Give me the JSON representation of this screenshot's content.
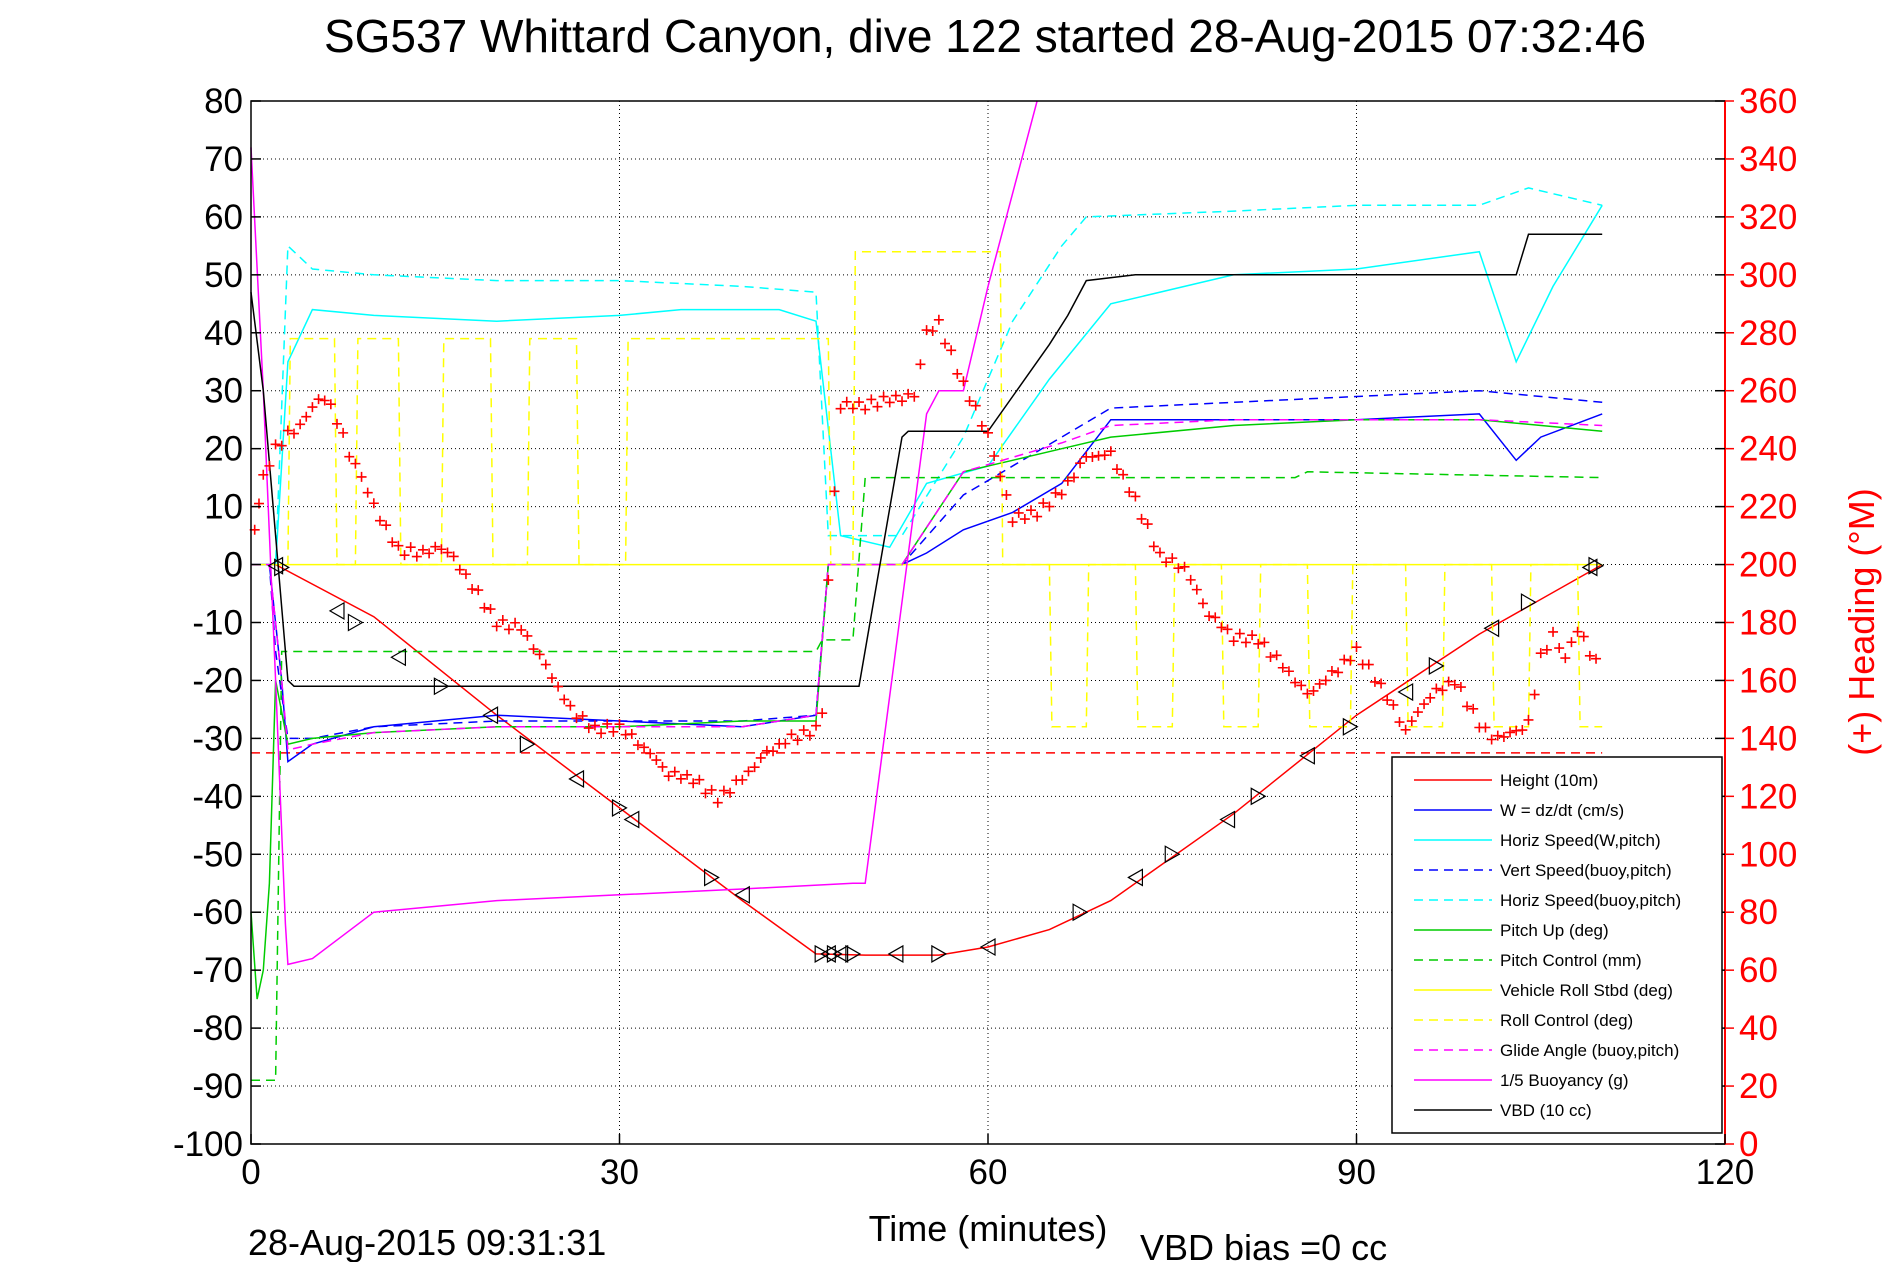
{
  "chart_data": {
    "type": "line",
    "title": "SG537 Whittard Canyon, dive 122 started 28-Aug-2015 07:32:46",
    "xlabel": "Time (minutes)",
    "ylabel_right": "(+) Heading (°M)",
    "xlim": [
      0,
      120
    ],
    "ylim": [
      -100,
      80
    ],
    "ylim_right": [
      0,
      360
    ],
    "xticks": [
      "0",
      "30",
      "60",
      "90",
      "120"
    ],
    "yticks": [
      "80",
      "70",
      "60",
      "50",
      "40",
      "30",
      "20",
      "10",
      "0",
      "-10",
      "-20",
      "-30",
      "-40",
      "-50",
      "-60",
      "-70",
      "-80",
      "-90",
      "-100"
    ],
    "yticks_right": [
      "360",
      "340",
      "320",
      "300",
      "280",
      "260",
      "240",
      "220",
      "200",
      "180",
      "160",
      "140",
      "120",
      "100",
      "80",
      "60",
      "40",
      "20",
      "0"
    ],
    "grid": true,
    "legend_position": "bottom-right",
    "footer_timestamp": "28-Aug-2015 09:31:31",
    "footer_note": "VBD bias =0 cc",
    "series": [
      {
        "name": "Height (10m)",
        "color": "#ff0000",
        "dash": "solid",
        "x": [
          0,
          2,
          10,
          20,
          30,
          40,
          46,
          50,
          56,
          60,
          65,
          70,
          80,
          90,
          100,
          110
        ],
        "y": [
          0,
          0,
          -9,
          -26,
          -42,
          -58,
          -67.2,
          -67.4,
          -67.4,
          -66,
          -63,
          -58,
          -43,
          -26,
          -12,
          0
        ]
      },
      {
        "name": "W = dz/dt (cm/s)",
        "color": "#0000ff",
        "dash": "solid",
        "x": [
          0,
          1.5,
          2.5,
          3,
          5,
          10,
          20,
          30,
          40,
          46,
          47,
          53,
          55,
          58,
          62,
          66,
          70,
          80,
          90,
          100,
          103,
          105,
          110
        ],
        "y": [
          0,
          0,
          -20,
          -34,
          -31,
          -28,
          -26,
          -27,
          -28,
          -26,
          0,
          0,
          2,
          6,
          9,
          14,
          25,
          25,
          25,
          26,
          18,
          22,
          26
        ]
      },
      {
        "name": "Horiz Speed(W,pitch)",
        "color": "#00ffff",
        "dash": "solid",
        "x": [
          0,
          2,
          3,
          5,
          10,
          20,
          30,
          35,
          43,
          46,
          48,
          52,
          55,
          60,
          65,
          70,
          80,
          90,
          100,
          103,
          106,
          110
        ],
        "y": [
          0,
          0,
          35,
          44,
          43,
          42,
          43,
          44,
          44,
          42,
          5,
          3,
          14,
          17,
          32,
          45,
          50,
          51,
          54,
          35,
          48,
          62
        ]
      },
      {
        "name": "Vert Speed(buoy,pitch)",
        "color": "#0000ff",
        "dash": "dashed",
        "x": [
          0,
          1.5,
          2,
          3,
          5,
          10,
          20,
          30,
          40,
          46,
          47,
          53,
          58,
          66,
          70,
          80,
          90,
          100,
          110
        ],
        "y": [
          0,
          0,
          -15,
          -30,
          -30,
          -28,
          -27,
          -27,
          -27,
          -26,
          0,
          0,
          12,
          22,
          27,
          28,
          29,
          30,
          28
        ]
      },
      {
        "name": "Horiz Speed(buoy,pitch)",
        "color": "#00ffff",
        "dash": "dashed",
        "x": [
          0,
          2,
          3,
          5,
          10,
          20,
          30,
          40,
          46,
          47,
          53,
          58,
          62,
          66,
          68,
          80,
          90,
          100,
          104,
          110
        ],
        "y": [
          0,
          0,
          55,
          51,
          50,
          49,
          49,
          48,
          47,
          5,
          5,
          22,
          42,
          55,
          60,
          61,
          62,
          62,
          65,
          62
        ]
      },
      {
        "name": "Pitch Up (deg)",
        "color": "#00cc00",
        "dash": "solid",
        "x": [
          0,
          0.5,
          1,
          1.5,
          2,
          3,
          5,
          10,
          20,
          30,
          40,
          46,
          47,
          53,
          58,
          62,
          66,
          70,
          80,
          90,
          100,
          110
        ],
        "y": [
          -60,
          -75,
          -70,
          -55,
          -20,
          -31,
          -30,
          -29,
          -28,
          -28,
          -27,
          -27,
          0,
          0,
          16,
          18,
          20,
          22,
          24,
          25,
          25,
          23
        ]
      },
      {
        "name": "Pitch Control (mm)",
        "color": "#00cc00",
        "dash": "dashed",
        "x": [
          0,
          2,
          2.5,
          3,
          46,
          46.5,
          49,
          50,
          66,
          67,
          85,
          86,
          110
        ],
        "y": [
          -89,
          -89,
          -15,
          -15,
          -15,
          -13,
          -13,
          15,
          15,
          15,
          15,
          16,
          15
        ]
      },
      {
        "name": "Vehicle Roll Stbd (deg)",
        "color": "#ffff00",
        "dash": "solid",
        "x": [
          0,
          110
        ],
        "y": [
          0,
          0
        ]
      },
      {
        "name": "Roll Control (deg)",
        "color": "#ffff00",
        "dash": "dashed",
        "x": [
          3,
          3.2,
          6.8,
          7,
          8.5,
          8.7,
          12,
          12.2,
          15.5,
          15.7,
          19.5,
          19.7,
          22.5,
          22.7,
          26.5,
          26.7,
          30.5,
          30.7,
          47,
          47.2,
          49,
          49.2,
          61,
          61.2,
          65,
          65.2,
          68,
          68.2,
          72,
          72.2,
          75,
          75.2,
          79,
          79.2,
          82,
          82.2,
          86,
          86.2,
          89.5,
          89.7,
          94,
          94.2,
          97,
          97.2,
          101,
          101.2,
          104,
          104.2,
          108,
          108.2,
          110
        ],
        "y": [
          0,
          39,
          39,
          0,
          0,
          39,
          39,
          0,
          0,
          39,
          39,
          0,
          0,
          39,
          39,
          0,
          0,
          39,
          39,
          0,
          0,
          54,
          54,
          0,
          0,
          -28,
          -28,
          0,
          0,
          -28,
          -28,
          0,
          0,
          -28,
          -28,
          0,
          0,
          -28,
          -28,
          0,
          0,
          -28,
          -28,
          0,
          0,
          -28,
          -28,
          0,
          0,
          -28,
          -28
        ]
      },
      {
        "name": "Glide Angle (buoy,pitch)",
        "color": "#ff00ff",
        "dash": "dashed",
        "x": [
          0,
          1.5,
          2.5,
          3,
          5,
          10,
          20,
          30,
          40,
          46,
          47,
          53,
          58,
          66,
          70,
          80,
          90,
          100,
          110
        ],
        "y": [
          0,
          0,
          -20,
          -32,
          -31,
          -29,
          -28,
          -28,
          -28,
          -26,
          0,
          0,
          16,
          21,
          24,
          25,
          25,
          25,
          24
        ]
      },
      {
        "name": "1/5 Buoyancy (g)",
        "color": "#ff00ff",
        "dash": "solid",
        "x": [
          0,
          1,
          2,
          2.8,
          3,
          5,
          10,
          20,
          30,
          40,
          49,
          50,
          55,
          56,
          58,
          60,
          63,
          64
        ],
        "y": [
          72,
          30,
          -20,
          -62,
          -69,
          -68,
          -60,
          -58,
          -57,
          -56,
          -55,
          -55,
          26,
          30,
          30,
          48,
          72,
          80
        ]
      },
      {
        "name": "VBD (10 cc)",
        "color": "#000000",
        "dash": "solid",
        "x": [
          0,
          1,
          2,
          3,
          3.5,
          49,
          49.5,
          53,
          53.5,
          59,
          60,
          65,
          66.5,
          68,
          72,
          103,
          104,
          110
        ],
        "y": [
          47,
          30,
          5,
          -20,
          -21,
          -21,
          -21,
          22,
          23,
          23,
          23,
          38,
          43,
          49,
          50,
          50,
          57,
          57
        ]
      }
    ],
    "reference_lines": [
      {
        "color": "#ff0000",
        "dash": "dashed",
        "y": -32.5,
        "x": [
          0,
          110
        ]
      }
    ],
    "heading": {
      "name": "(+) Heading (°M)",
      "color": "#ff0000",
      "axis": "right",
      "x": [
        0.3,
        1,
        2,
        3,
        4,
        5,
        6,
        7,
        8,
        9,
        10,
        12,
        14,
        15,
        16,
        18,
        20,
        22,
        24,
        26,
        28,
        30,
        32,
        34,
        36,
        38,
        40,
        42,
        44,
        46,
        46.5,
        47,
        48,
        50,
        52,
        54,
        55,
        56,
        58,
        60,
        61,
        62,
        64,
        66,
        68,
        70,
        72,
        74,
        76,
        78,
        80,
        82,
        84,
        86,
        88,
        90,
        92,
        94,
        96,
        98,
        100,
        101,
        103,
        104,
        105,
        106,
        107,
        108,
        109,
        110
      ],
      "y": [
        212,
        230,
        240,
        245,
        248,
        255,
        258,
        250,
        238,
        230,
        220,
        205,
        204,
        206,
        205,
        193,
        180,
        178,
        165,
        150,
        143,
        144,
        137,
        128,
        126,
        119,
        126,
        135,
        140,
        143,
        148,
        195,
        255,
        255,
        257,
        258,
        280,
        283,
        262,
        245,
        231,
        216,
        218,
        225,
        237,
        238,
        222,
        203,
        199,
        183,
        175,
        174,
        165,
        155,
        162,
        170,
        158,
        143,
        155,
        160,
        145,
        140,
        142,
        145,
        168,
        176,
        168,
        178,
        170,
        162
      ]
    },
    "markers": {
      "color": "#000000",
      "shape": "triangle",
      "x": [
        2,
        2.5,
        7,
        8.5,
        12,
        15.5,
        19.5,
        22.5,
        26.5,
        30,
        31,
        37.5,
        40,
        46.5,
        47,
        47.5,
        48,
        49,
        52.5,
        56,
        60,
        67.5,
        72,
        75,
        79.5,
        82,
        86,
        89.5,
        94,
        96.5,
        101,
        104,
        109,
        109.5
      ],
      "y": [
        -0.2,
        -0.5,
        -8,
        -10,
        -16,
        -21,
        -26,
        -31,
        -37,
        -42,
        -44,
        -54,
        -57,
        -67.2,
        -67.2,
        -67.2,
        -67.2,
        -67.2,
        -67.2,
        -67.2,
        -66,
        -60,
        -54,
        -50,
        -44,
        -40,
        -33,
        -28,
        -22,
        -17.5,
        -11,
        -6.5,
        -0.5,
        -0.2
      ]
    }
  }
}
